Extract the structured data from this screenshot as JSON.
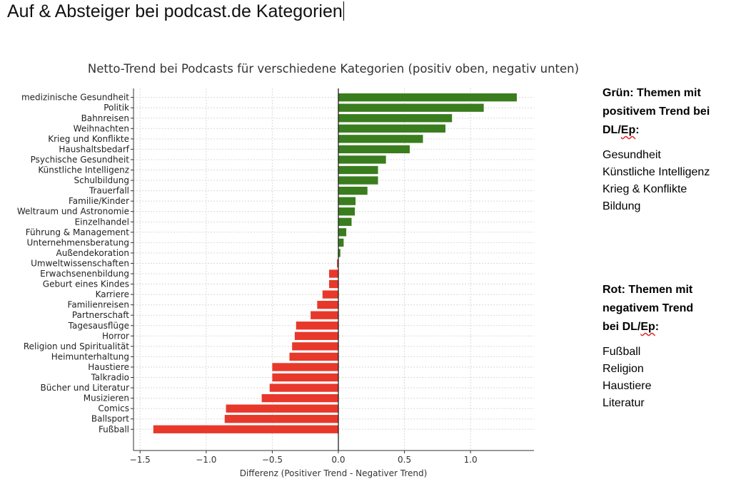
{
  "document": {
    "title": "Auf & Absteiger bei podcast.de Kategorien"
  },
  "legend_notes": {
    "positive": {
      "head_line1": "Grün: Themen mit",
      "head_line2": "positivem Trend bei",
      "head_line3_prefix": "DL/",
      "head_line3_marked": "Ep",
      "head_line3_suffix": ":",
      "items": [
        "Gesundheit",
        "Künstliche Intelligenz",
        "Krieg & Konflikte",
        "Bildung"
      ]
    },
    "negative": {
      "head_line1": "Rot: Themen mit",
      "head_line2": "negativem Trend",
      "head_line3_prefix": "bei DL/",
      "head_line3_marked": "Ep",
      "head_line3_suffix": ":",
      "items": [
        "Fußball",
        "Religion",
        "Haustiere",
        "Literatur"
      ]
    }
  },
  "colors": {
    "positive": "#3a7d1e",
    "negative": "#e8382b",
    "grid": "#d9d9d9",
    "axis": "#333333"
  },
  "chart_data": {
    "type": "bar",
    "orientation": "horizontal",
    "title": "Netto-Trend bei Podcasts für verschiedene Kategorien (positiv oben, negativ unten)",
    "xlabel": "Differenz (Positiver Trend - Negativer Trend)",
    "ylabel": "",
    "xlim": [
      -1.55,
      1.48
    ],
    "xticks": [
      -1.5,
      -1.0,
      -0.5,
      0.0,
      0.5,
      1.0
    ],
    "xtick_labels": [
      "−1.5",
      "−1.0",
      "−0.5",
      "0.0",
      "0.5",
      "1.0"
    ],
    "grid": true,
    "categories": [
      "medizinische Gesundheit",
      "Politik",
      "Bahnreisen",
      "Weihnachten",
      "Krieg und Konflikte",
      "Haushaltsbedarf",
      "Psychische Gesundheit",
      "Künstliche Intelligenz",
      "Schulbildung",
      "Trauerfall",
      "Familie/Kinder",
      "Weltraum und Astronomie",
      "Einzelhandel",
      "Führung & Management",
      "Unternehmensberatung",
      "Außendekoration",
      "Umweltwissenschaften",
      "Erwachsenenbildung",
      "Geburt eines Kindes",
      "Karriere",
      "Familienreisen",
      "Partnerschaft",
      "Tagesausflüge",
      "Horror",
      "Religion und Spiritualität",
      "Heimunterhaltung",
      "Haustiere",
      "Talkradio",
      "Bücher und Literatur",
      "Musizieren",
      "Comics",
      "Ballsport",
      "Fußball"
    ],
    "values": [
      1.35,
      1.1,
      0.86,
      0.81,
      0.64,
      0.54,
      0.36,
      0.3,
      0.3,
      0.22,
      0.13,
      0.125,
      0.1,
      0.06,
      0.04,
      0.015,
      -0.01,
      -0.07,
      -0.07,
      -0.12,
      -0.16,
      -0.21,
      -0.32,
      -0.33,
      -0.35,
      -0.37,
      -0.5,
      -0.5,
      -0.52,
      -0.58,
      -0.85,
      -0.86,
      -1.4
    ]
  }
}
